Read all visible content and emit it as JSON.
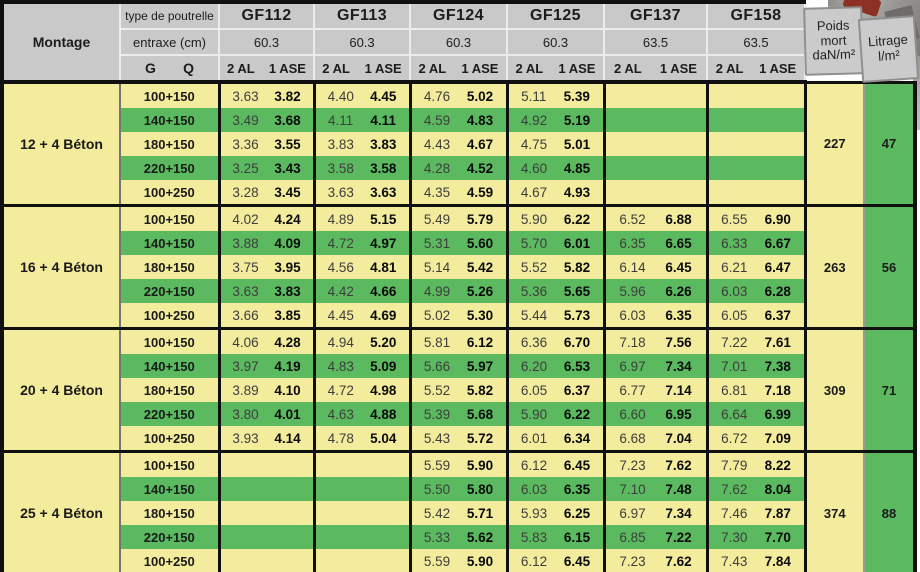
{
  "header": {
    "montage_label": "Montage",
    "type_label": "type de poutrelle",
    "entraxe_label": "entraxe (cm)",
    "g_label": "G",
    "q_label": "Q",
    "poids_lines": [
      "Poids",
      "mort",
      "daN/m²"
    ],
    "litrage_lines": [
      "Litrage",
      "l/m²"
    ],
    "columns": [
      {
        "name": "GF112",
        "entraxe": "60.3",
        "sub_left": "2 AL",
        "sub_right": "1 ASE"
      },
      {
        "name": "GF113",
        "entraxe": "60.3",
        "sub_left": "2 AL",
        "sub_right": "1 ASE"
      },
      {
        "name": "GF124",
        "entraxe": "60.3",
        "sub_left": "2 AL",
        "sub_right": "1 ASE"
      },
      {
        "name": "GF125",
        "entraxe": "60.3",
        "sub_left": "2 AL",
        "sub_right": "1 ASE"
      },
      {
        "name": "GF137",
        "entraxe": "63.5",
        "sub_left": "2 AL",
        "sub_right": "1 ASE"
      },
      {
        "name": "GF158",
        "entraxe": "63.5",
        "sub_left": "2 AL",
        "sub_right": "1 ASE"
      }
    ]
  },
  "blocks": [
    {
      "montage": "12 + 4 Béton",
      "poids_mort": "227",
      "litrage": "47",
      "rows": [
        {
          "label": "100+150",
          "values": [
            [
              "3.63",
              "3.82"
            ],
            [
              "4.40",
              "4.45"
            ],
            [
              "4.76",
              "5.02"
            ],
            [
              "5.11",
              "5.39"
            ],
            [
              "",
              ""
            ],
            [
              "",
              ""
            ]
          ]
        },
        {
          "label": "140+150",
          "values": [
            [
              "3.49",
              "3.68"
            ],
            [
              "4.11",
              "4.11"
            ],
            [
              "4.59",
              "4.83"
            ],
            [
              "4.92",
              "5.19"
            ],
            [
              "",
              ""
            ],
            [
              "",
              ""
            ]
          ]
        },
        {
          "label": "180+150",
          "values": [
            [
              "3.36",
              "3.55"
            ],
            [
              "3.83",
              "3.83"
            ],
            [
              "4.43",
              "4.67"
            ],
            [
              "4.75",
              "5.01"
            ],
            [
              "",
              ""
            ],
            [
              "",
              ""
            ]
          ]
        },
        {
          "label": "220+150",
          "values": [
            [
              "3.25",
              "3.43"
            ],
            [
              "3.58",
              "3.58"
            ],
            [
              "4.28",
              "4.52"
            ],
            [
              "4.60",
              "4.85"
            ],
            [
              "",
              ""
            ],
            [
              "",
              ""
            ]
          ]
        },
        {
          "label": "100+250",
          "values": [
            [
              "3.28",
              "3.45"
            ],
            [
              "3.63",
              "3.63"
            ],
            [
              "4.35",
              "4.59"
            ],
            [
              "4.67",
              "4.93"
            ],
            [
              "",
              ""
            ],
            [
              "",
              ""
            ]
          ]
        }
      ]
    },
    {
      "montage": "16 + 4 Béton",
      "poids_mort": "263",
      "litrage": "56",
      "rows": [
        {
          "label": "100+150",
          "values": [
            [
              "4.02",
              "4.24"
            ],
            [
              "4.89",
              "5.15"
            ],
            [
              "5.49",
              "5.79"
            ],
            [
              "5.90",
              "6.22"
            ],
            [
              "6.52",
              "6.88"
            ],
            [
              "6.55",
              "6.90"
            ]
          ]
        },
        {
          "label": "140+150",
          "values": [
            [
              "3.88",
              "4.09"
            ],
            [
              "4.72",
              "4.97"
            ],
            [
              "5.31",
              "5.60"
            ],
            [
              "5.70",
              "6.01"
            ],
            [
              "6.35",
              "6.65"
            ],
            [
              "6.33",
              "6.67"
            ]
          ]
        },
        {
          "label": "180+150",
          "values": [
            [
              "3.75",
              "3.95"
            ],
            [
              "4.56",
              "4.81"
            ],
            [
              "5.14",
              "5.42"
            ],
            [
              "5.52",
              "5.82"
            ],
            [
              "6.14",
              "6.45"
            ],
            [
              "6.21",
              "6.47"
            ]
          ]
        },
        {
          "label": "220+150",
          "values": [
            [
              "3.63",
              "3.83"
            ],
            [
              "4.42",
              "4.66"
            ],
            [
              "4.99",
              "5.26"
            ],
            [
              "5.36",
              "5.65"
            ],
            [
              "5.96",
              "6.26"
            ],
            [
              "6.03",
              "6.28"
            ]
          ]
        },
        {
          "label": "100+250",
          "values": [
            [
              "3.66",
              "3.85"
            ],
            [
              "4.45",
              "4.69"
            ],
            [
              "5.02",
              "5.30"
            ],
            [
              "5.44",
              "5.73"
            ],
            [
              "6.03",
              "6.35"
            ],
            [
              "6.05",
              "6.37"
            ]
          ]
        }
      ]
    },
    {
      "montage": "20 + 4 Béton",
      "poids_mort": "309",
      "litrage": "71",
      "rows": [
        {
          "label": "100+150",
          "values": [
            [
              "4.06",
              "4.28"
            ],
            [
              "4.94",
              "5.20"
            ],
            [
              "5.81",
              "6.12"
            ],
            [
              "6.36",
              "6.70"
            ],
            [
              "7.18",
              "7.56"
            ],
            [
              "7.22",
              "7.61"
            ]
          ]
        },
        {
          "label": "140+150",
          "values": [
            [
              "3.97",
              "4.19"
            ],
            [
              "4.83",
              "5.09"
            ],
            [
              "5.66",
              "5.97"
            ],
            [
              "6.20",
              "6.53"
            ],
            [
              "6.97",
              "7.34"
            ],
            [
              "7.01",
              "7.38"
            ]
          ]
        },
        {
          "label": "180+150",
          "values": [
            [
              "3.89",
              "4.10"
            ],
            [
              "4.72",
              "4.98"
            ],
            [
              "5.52",
              "5.82"
            ],
            [
              "6.05",
              "6.37"
            ],
            [
              "6.77",
              "7.14"
            ],
            [
              "6.81",
              "7.18"
            ]
          ]
        },
        {
          "label": "220+150",
          "values": [
            [
              "3.80",
              "4.01"
            ],
            [
              "4.63",
              "4.88"
            ],
            [
              "5.39",
              "5.68"
            ],
            [
              "5.90",
              "6.22"
            ],
            [
              "6.60",
              "6.95"
            ],
            [
              "6.64",
              "6.99"
            ]
          ]
        },
        {
          "label": "100+250",
          "values": [
            [
              "3.93",
              "4.14"
            ],
            [
              "4.78",
              "5.04"
            ],
            [
              "5.43",
              "5.72"
            ],
            [
              "6.01",
              "6.34"
            ],
            [
              "6.68",
              "7.04"
            ],
            [
              "6.72",
              "7.09"
            ]
          ]
        }
      ]
    },
    {
      "montage": "25 + 4 Béton",
      "poids_mort": "374",
      "litrage": "88",
      "rows": [
        {
          "label": "100+150",
          "values": [
            [
              "",
              ""
            ],
            [
              "",
              ""
            ],
            [
              "5.59",
              "5.90"
            ],
            [
              "6.12",
              "6.45"
            ],
            [
              "7.23",
              "7.62"
            ],
            [
              "7.79",
              "8.22"
            ]
          ]
        },
        {
          "label": "140+150",
          "values": [
            [
              "",
              ""
            ],
            [
              "",
              ""
            ],
            [
              "5.50",
              "5.80"
            ],
            [
              "6.03",
              "6.35"
            ],
            [
              "7.10",
              "7.48"
            ],
            [
              "7.62",
              "8.04"
            ]
          ]
        },
        {
          "label": "180+150",
          "values": [
            [
              "",
              ""
            ],
            [
              "",
              ""
            ],
            [
              "5.42",
              "5.71"
            ],
            [
              "5.93",
              "6.25"
            ],
            [
              "6.97",
              "7.34"
            ],
            [
              "7.46",
              "7.87"
            ]
          ]
        },
        {
          "label": "220+150",
          "values": [
            [
              "",
              ""
            ],
            [
              "",
              ""
            ],
            [
              "5.33",
              "5.62"
            ],
            [
              "5.83",
              "6.15"
            ],
            [
              "6.85",
              "7.22"
            ],
            [
              "7.30",
              "7.70"
            ]
          ]
        },
        {
          "label": "100+250",
          "values": [
            [
              "",
              ""
            ],
            [
              "",
              ""
            ],
            [
              "5.59",
              "5.90"
            ],
            [
              "6.12",
              "6.45"
            ],
            [
              "7.23",
              "7.62"
            ],
            [
              "7.43",
              "7.84"
            ]
          ]
        }
      ]
    }
  ]
}
